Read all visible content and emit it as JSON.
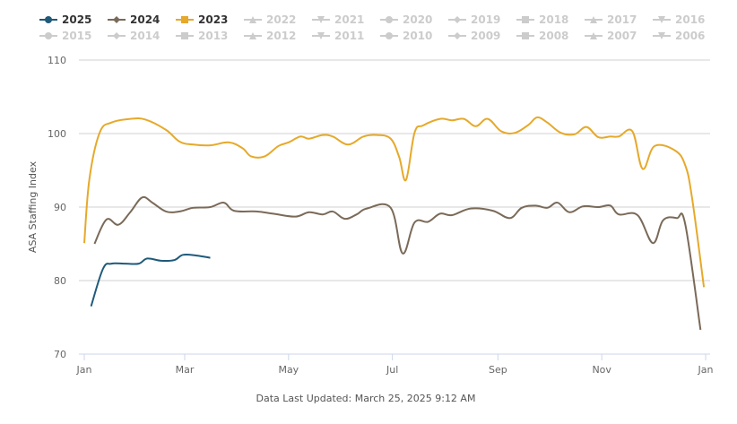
{
  "chart_data": {
    "type": "line",
    "title": "",
    "xlabel": "",
    "ylabel": "ASA Staffing Index",
    "ylim": [
      70,
      110
    ],
    "yticks": [
      "70",
      "80",
      "90",
      "100",
      "110"
    ],
    "xticks": [
      "Jan",
      "Mar",
      "May",
      "Jul",
      "Sep",
      "Nov",
      "Jan"
    ],
    "grid": true,
    "legend_placement": "top-left",
    "active_color": "#333333",
    "inactive_color": "#cccccc",
    "series": [
      {
        "name": "2025",
        "color": "#1f5a7a",
        "marker": "circle",
        "active": true,
        "x": [
          "01-05",
          "01-12",
          "01-17",
          "01-25",
          "02-02",
          "02-07",
          "02-15",
          "02-23",
          "02-28",
          "03-08",
          "03-16"
        ],
        "values": [
          76.5,
          81.6,
          82.3,
          82.3,
          82.3,
          83.0,
          82.7,
          82.8,
          83.5,
          83.4,
          83.1
        ]
      },
      {
        "name": "2024",
        "color": "#7a6a58",
        "marker": "diamond",
        "active": true,
        "x": [
          "01-01",
          "01-07",
          "01-14",
          "01-21",
          "01-28",
          "02-04",
          "02-10",
          "02-18",
          "02-26",
          "03-06",
          "03-16",
          "03-24",
          "03-30",
          "04-12",
          "04-22",
          "05-05",
          "05-13",
          "05-21",
          "05-27",
          "06-03",
          "06-10",
          "06-16",
          "06-30",
          "07-07",
          "07-14",
          "07-22",
          "07-29",
          "08-05",
          "08-16",
          "08-29",
          "09-08",
          "09-15",
          "09-23",
          "09-30",
          "10-06",
          "10-13",
          "10-21",
          "10-30",
          "11-06",
          "11-11",
          "11-22",
          "12-01",
          "12-07",
          "12-15",
          "12-20",
          "12-29"
        ],
        "values": [
          null,
          85.0,
          88.3,
          87.6,
          89.3,
          91.3,
          90.6,
          89.4,
          89.4,
          89.9,
          90.0,
          90.6,
          89.5,
          89.4,
          89.1,
          88.7,
          89.3,
          89.0,
          89.4,
          88.4,
          89.0,
          89.8,
          89.9,
          83.7,
          87.9,
          88.0,
          89.1,
          88.9,
          89.8,
          89.5,
          88.5,
          89.9,
          90.2,
          89.9,
          90.6,
          89.3,
          90.1,
          90.0,
          90.2,
          89.0,
          88.9,
          85.1,
          88.2,
          88.5,
          87.7,
          73.3
        ]
      },
      {
        "name": "2023",
        "color": "#e6a92a",
        "marker": "square",
        "active": true,
        "x": [
          "01-01",
          "01-04",
          "01-10",
          "01-17",
          "01-28",
          "02-06",
          "02-18",
          "02-26",
          "03-06",
          "03-16",
          "03-27",
          "04-04",
          "04-09",
          "04-17",
          "04-25",
          "05-01",
          "05-08",
          "05-13",
          "05-21",
          "05-27",
          "06-05",
          "06-14",
          "06-22",
          "06-30",
          "07-05",
          "07-09",
          "07-14",
          "07-19",
          "07-29",
          "08-05",
          "08-12",
          "08-19",
          "08-26",
          "09-03",
          "09-11",
          "09-19",
          "09-24",
          "09-30",
          "10-08",
          "10-16",
          "10-23",
          "10-30",
          "11-06",
          "11-11",
          "11-19",
          "11-25",
          "12-02",
          "12-14",
          "12-20",
          "12-24",
          "12-31"
        ],
        "values": [
          85.1,
          93.8,
          100.1,
          101.5,
          102.0,
          101.9,
          100.5,
          98.9,
          98.5,
          98.4,
          98.8,
          98.0,
          96.9,
          96.9,
          98.3,
          98.8,
          99.6,
          99.3,
          99.8,
          99.6,
          98.5,
          99.6,
          99.8,
          99.3,
          96.8,
          93.7,
          100.1,
          101.1,
          102.0,
          101.8,
          102.0,
          101.0,
          102.0,
          100.3,
          100.1,
          101.2,
          102.2,
          101.5,
          100.1,
          99.9,
          100.9,
          99.5,
          99.6,
          99.6,
          100.3,
          95.2,
          98.3,
          97.7,
          95.7,
          91.3,
          79.1
        ]
      },
      {
        "name": "2022",
        "marker": "triangle",
        "active": false
      },
      {
        "name": "2021",
        "marker": "triangle-down",
        "active": false
      },
      {
        "name": "2020",
        "marker": "circle",
        "active": false
      },
      {
        "name": "2019",
        "marker": "diamond",
        "active": false
      },
      {
        "name": "2018",
        "marker": "square",
        "active": false
      },
      {
        "name": "2017",
        "marker": "triangle",
        "active": false
      },
      {
        "name": "2016",
        "marker": "triangle-down",
        "active": false
      },
      {
        "name": "2015",
        "marker": "circle",
        "active": false
      },
      {
        "name": "2014",
        "marker": "diamond",
        "active": false
      },
      {
        "name": "2013",
        "marker": "square",
        "active": false
      },
      {
        "name": "2012",
        "marker": "triangle",
        "active": false
      },
      {
        "name": "2011",
        "marker": "triangle-down",
        "active": false
      },
      {
        "name": "2010",
        "marker": "circle",
        "active": false
      },
      {
        "name": "2009",
        "marker": "diamond",
        "active": false
      },
      {
        "name": "2008",
        "marker": "square",
        "active": false
      },
      {
        "name": "2007",
        "marker": "triangle",
        "active": false
      },
      {
        "name": "2006",
        "marker": "triangle-down",
        "active": false
      }
    ]
  },
  "footer": "Data Last Updated: March 25, 2025 9:12 AM"
}
